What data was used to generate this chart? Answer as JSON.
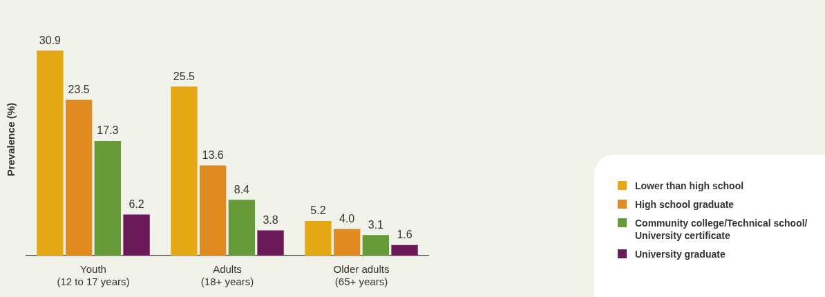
{
  "chart_data": {
    "type": "bar",
    "ylabel": "Prevalence (%)",
    "categories": [
      "Youth\n(12 to 17 years)",
      "Adults\n(18+ years)",
      "Older adults\n(65+ years)"
    ],
    "series": [
      {
        "name": "Lower than high school",
        "color": "#e5a916",
        "values": [
          30.9,
          25.5,
          5.2
        ],
        "value_labels": [
          "30.9",
          "25.5",
          "5.2"
        ]
      },
      {
        "name": "High school graduate",
        "color": "#e08a22",
        "values": [
          23.5,
          13.6,
          4.0
        ],
        "value_labels": [
          "23.5",
          "13.6",
          "4.0"
        ]
      },
      {
        "name": "Community college/Technical school/\nUniversity certificate",
        "color": "#679b3a",
        "values": [
          17.3,
          8.4,
          3.1
        ],
        "value_labels": [
          "17.3",
          "8.4",
          "3.1"
        ]
      },
      {
        "name": "University graduate",
        "color": "#6a1a58",
        "values": [
          6.2,
          3.8,
          1.6
        ],
        "value_labels": [
          "6.2",
          "3.8",
          "1.6"
        ]
      }
    ],
    "grid": false,
    "legend": "bottom right"
  }
}
